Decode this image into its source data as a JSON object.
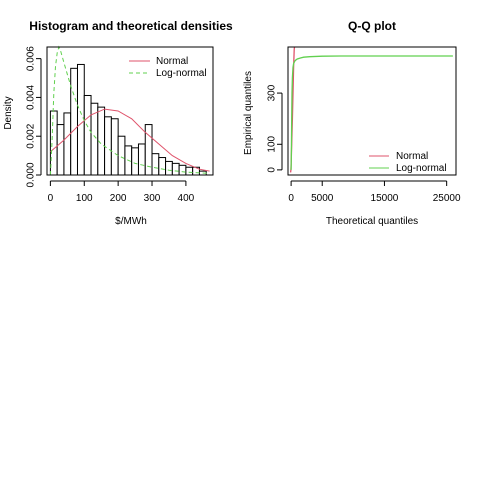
{
  "chart_data": [
    {
      "type": "bar",
      "title": "Histogram and theoretical densities",
      "xlabel": "$/MWh",
      "ylabel": "Density",
      "xlim": [
        -10,
        480
      ],
      "ylim": [
        0,
        0.0066
      ],
      "x_ticks": [
        0,
        100,
        200,
        300,
        400
      ],
      "x_tick_labels": [
        "0",
        "100",
        "200",
        "300",
        "400"
      ],
      "y_ticks": [
        0,
        0.002,
        0.004,
        0.006
      ],
      "y_tick_labels": [
        "0.000",
        "0.002",
        "0.004",
        "0.006"
      ],
      "grid": false,
      "legend_position": "top-right",
      "bins": {
        "start": 0,
        "width": 20,
        "values": [
          0.0033,
          0.0026,
          0.0032,
          0.0055,
          0.0057,
          0.0041,
          0.0037,
          0.0035,
          0.003,
          0.0029,
          0.002,
          0.0015,
          0.0014,
          0.0016,
          0.0026,
          0.0011,
          0.0009,
          0.0007,
          0.0006,
          0.0005,
          0.0004,
          0.0004,
          0.0002,
          0.0
        ]
      },
      "series": [
        {
          "name": "Normal",
          "color": "#DF536B",
          "line_style": "solid",
          "x": [
            0,
            40,
            80,
            120,
            160,
            200,
            240,
            280,
            320,
            360,
            400,
            440,
            470
          ],
          "y": [
            0.0012,
            0.0018,
            0.0025,
            0.0031,
            0.0034,
            0.0033,
            0.0029,
            0.0022,
            0.0016,
            0.001,
            0.0006,
            0.0003,
            0.0002
          ]
        },
        {
          "name": "Log-normal",
          "color": "#61D04F",
          "line_style": "dashed",
          "x": [
            0,
            5,
            10,
            15,
            20,
            25,
            30,
            40,
            50,
            60,
            80,
            100,
            120,
            150,
            200,
            250,
            300,
            350,
            400,
            470
          ],
          "y": [
            0.0,
            0.0018,
            0.0042,
            0.0056,
            0.0063,
            0.0066,
            0.0064,
            0.0058,
            0.0052,
            0.0046,
            0.0036,
            0.0028,
            0.0022,
            0.0016,
            0.001,
            0.0006,
            0.0004,
            0.00025,
            0.00015,
            8e-05
          ]
        }
      ]
    },
    {
      "type": "line",
      "title": "Q-Q plot",
      "xlabel": "Theoretical quantiles",
      "ylabel": "Empirical quantiles",
      "xlim": [
        -500,
        26500
      ],
      "ylim": [
        -20,
        480
      ],
      "x_ticks": [
        0,
        5000,
        15000,
        25000
      ],
      "x_tick_labels": [
        "0",
        "5000",
        "15000",
        "25000"
      ],
      "y_ticks": [
        0,
        100,
        300
      ],
      "y_tick_labels": [
        "0",
        "100",
        "300"
      ],
      "grid": false,
      "legend_position": "bottom-right",
      "series": [
        {
          "name": "Normal",
          "color": "#DF536B",
          "x": [
            -80,
            -40,
            0,
            100,
            200,
            300,
            400,
            500,
            550
          ],
          "y": [
            -10,
            0,
            20,
            100,
            200,
            300,
            400,
            470,
            480
          ]
        },
        {
          "name": "Log-normal",
          "color": "#61D04F",
          "x": [
            0,
            50,
            100,
            150,
            200,
            300,
            400,
            600,
            800,
            1000,
            1500,
            2000,
            3000,
            5000,
            8000,
            12000,
            18000,
            26000
          ],
          "y": [
            0,
            80,
            200,
            300,
            360,
            400,
            415,
            425,
            430,
            433,
            437,
            440,
            442,
            444,
            445,
            445,
            445,
            445
          ]
        }
      ]
    }
  ]
}
